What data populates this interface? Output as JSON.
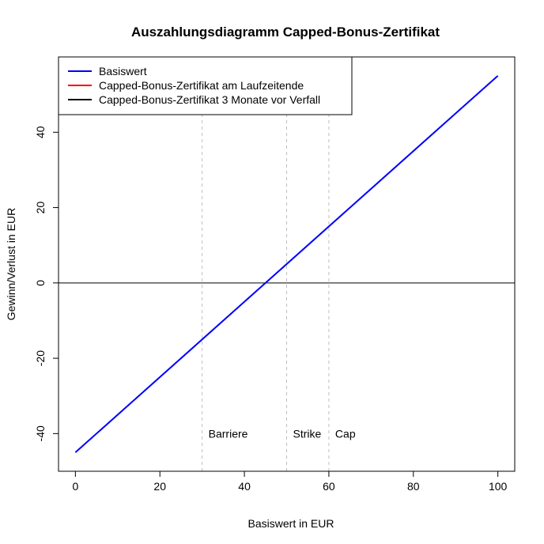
{
  "chart_data": {
    "type": "line",
    "title": "Auszahlungsdiagramm Capped-Bonus-Zertifikat",
    "xlabel": "Basiswert in EUR",
    "ylabel": "Gewinn/Verlust in EUR",
    "xlim": [
      -4,
      104
    ],
    "ylim": [
      -50,
      60
    ],
    "xticks": [
      0,
      20,
      40,
      60,
      80,
      100
    ],
    "yticks": [
      -40,
      -20,
      0,
      20,
      40
    ],
    "grid": false,
    "legend_position": "top-left",
    "series": [
      {
        "name": "Basiswert",
        "color": "#0000ff",
        "x": [
          0,
          100
        ],
        "y": [
          -45,
          55
        ]
      },
      {
        "name": "Capped-Bonus-Zertifikat am Laufzeitende",
        "color": "#ff0000",
        "x": [],
        "y": []
      },
      {
        "name": "Capped-Bonus-Zertifikat 3 Monate vor Verfall",
        "color": "#000000",
        "x": [],
        "y": []
      }
    ],
    "reference_lines": [
      {
        "orientation": "horizontal",
        "value": 0,
        "color": "#000000"
      },
      {
        "orientation": "vertical",
        "value": 30,
        "label": "Barriere",
        "color": "#bebebe"
      },
      {
        "orientation": "vertical",
        "value": 50,
        "label": "Strike",
        "color": "#bebebe"
      },
      {
        "orientation": "vertical",
        "value": 60,
        "label": "Cap",
        "color": "#bebebe"
      }
    ],
    "annotation_y": -40
  }
}
